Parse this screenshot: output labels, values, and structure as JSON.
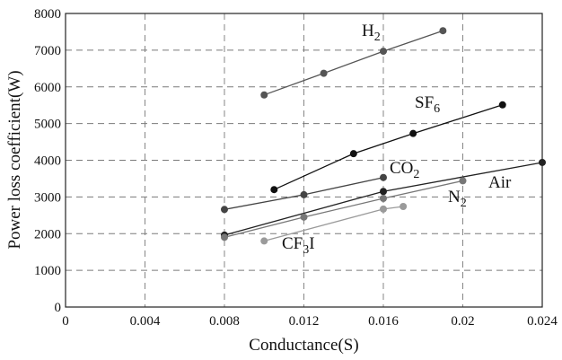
{
  "chart_data": {
    "type": "line",
    "title": "",
    "xlabel": "Conductance(S)",
    "ylabel": "Power loss coefficient(W)",
    "xlim": [
      0,
      0.024
    ],
    "ylim": [
      0,
      8000
    ],
    "xticks": [
      0,
      0.004,
      0.008,
      0.012,
      0.016,
      0.02,
      0.024
    ],
    "xtick_labels": [
      "0",
      "0.004",
      "0.008",
      "0.012",
      "0.016",
      "0.02",
      "0.024"
    ],
    "yticks": [
      0,
      1000,
      2000,
      3000,
      4000,
      5000,
      6000,
      7000,
      8000
    ],
    "ytick_labels": [
      "0",
      "1000",
      "2000",
      "3000",
      "4000",
      "5000",
      "6000",
      "7000",
      "8000"
    ],
    "grid": true,
    "legend": "none",
    "series": [
      {
        "name": "H2",
        "label_main": "H",
        "label_sub": "2",
        "label_tail": "",
        "color": "#555555",
        "x": [
          0.01,
          0.013,
          0.016,
          0.019
        ],
        "y": [
          5780,
          6370,
          6970,
          7530
        ]
      },
      {
        "name": "SF6",
        "label_main": "SF",
        "label_sub": "6",
        "label_tail": "",
        "color": "#111111",
        "x": [
          0.0105,
          0.0145,
          0.0175,
          0.022
        ],
        "y": [
          3200,
          4180,
          4730,
          5510
        ]
      },
      {
        "name": "CO2",
        "label_main": "CO",
        "label_sub": "2",
        "label_tail": "",
        "color": "#444444",
        "x": [
          0.008,
          0.012,
          0.016
        ],
        "y": [
          2660,
          3060,
          3530
        ]
      },
      {
        "name": "Air",
        "label_main": "Air",
        "label_sub": "",
        "label_tail": "",
        "color": "#222222",
        "x": [
          0.008,
          0.016,
          0.024
        ],
        "y": [
          1960,
          3150,
          3940
        ]
      },
      {
        "name": "N2",
        "label_main": "N",
        "label_sub": "2",
        "label_tail": "",
        "color": "#777777",
        "x": [
          0.008,
          0.012,
          0.016,
          0.02
        ],
        "y": [
          1900,
          2450,
          2960,
          3440
        ]
      },
      {
        "name": "CF3I",
        "label_main": "CF",
        "label_sub": "3",
        "label_tail": "I",
        "color": "#9a9a9a",
        "x": [
          0.01,
          0.016,
          0.017
        ],
        "y": [
          1800,
          2670,
          2740
        ]
      }
    ]
  }
}
